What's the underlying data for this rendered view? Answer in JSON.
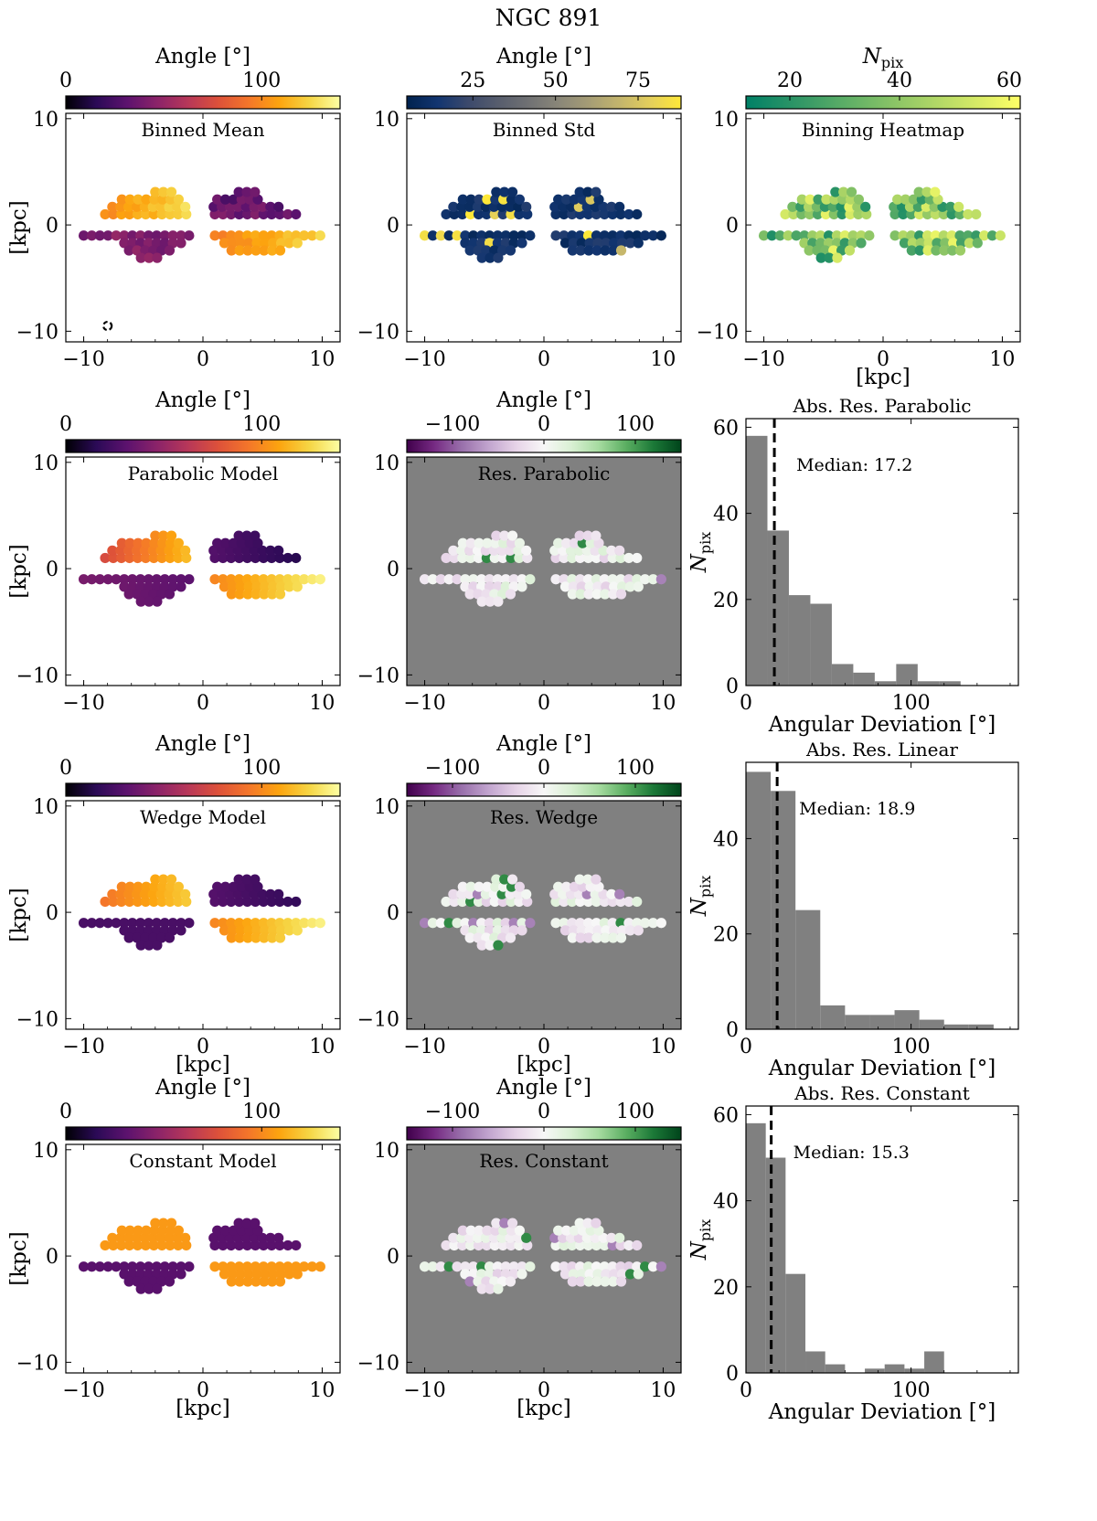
{
  "figure": {
    "title": "NGC 891",
    "maps": {
      "binned_mean": {
        "panel_title": "Binned Mean",
        "colorbar_label": "Angle [°]",
        "colorbar_ticks": [
          "0",
          "100"
        ],
        "colormap": "inferno"
      },
      "binned_std": {
        "panel_title": "Binned Std",
        "colorbar_label": "Angle [°]",
        "colorbar_ticks": [
          "25",
          "50",
          "75"
        ],
        "colormap": "cividis"
      },
      "binning_heatmap": {
        "panel_title": "Binning Heatmap",
        "colorbar_label": "N",
        "colorbar_label_sub": "pix",
        "colorbar_ticks": [
          "20",
          "40",
          "60"
        ],
        "colormap": "summer"
      },
      "parabolic_model": {
        "panel_title": "Parabolic Model",
        "colorbar_label": "Angle [°]",
        "colorbar_ticks": [
          "0",
          "100"
        ],
        "colormap": "inferno"
      },
      "res_parabolic": {
        "panel_title": "Res. Parabolic",
        "colorbar_label": "Angle [°]",
        "colorbar_ticks": [
          "−100",
          "0",
          "100"
        ],
        "colormap": "PRGn"
      },
      "wedge_model": {
        "panel_title": "Wedge Model",
        "colorbar_label": "Angle [°]",
        "colorbar_ticks": [
          "0",
          "100"
        ],
        "colormap": "inferno"
      },
      "res_wedge": {
        "panel_title": "Res. Wedge",
        "colorbar_label": "Angle [°]",
        "colorbar_ticks": [
          "−100",
          "0",
          "100"
        ],
        "colormap": "PRGn"
      },
      "constant_model": {
        "panel_title": "Constant Model",
        "colorbar_label": "Angle [°]",
        "colorbar_ticks": [
          "0",
          "100"
        ],
        "colormap": "inferno"
      },
      "res_constant": {
        "panel_title": "Res. Constant",
        "colorbar_label": "Angle [°]",
        "colorbar_ticks": [
          "−100",
          "0",
          "100"
        ],
        "colormap": "PRGn"
      }
    },
    "map_axes": {
      "x_ticks": [
        "−10",
        "0",
        "10"
      ],
      "y_ticks": [
        "10",
        "0",
        "−10"
      ],
      "xlabel": "[kpc]",
      "ylabel": "[kpc]"
    },
    "hist_axes": {
      "xlabel": "Angular Deviation [°]",
      "ylabel": "N",
      "ylabel_sub": "pix",
      "x_ticks": [
        "0",
        "100"
      ]
    },
    "hists": {
      "parabolic": {
        "title": "Abs. Res. Parabolic",
        "median_label": "Median: 17.2",
        "y_ticks": [
          "0",
          "20",
          "40",
          "60"
        ]
      },
      "linear": {
        "title": "Abs. Res. Linear",
        "median_label": "Median: 18.9",
        "y_ticks": [
          "0",
          "20",
          "40"
        ]
      },
      "constant": {
        "title": "Abs. Res. Constant",
        "median_label": "Median: 15.3",
        "y_ticks": [
          "0",
          "20",
          "40",
          "60"
        ]
      }
    }
  },
  "chart_data": [
    {
      "id": "binned_mean",
      "type": "scatter",
      "title": "Binned Mean",
      "xlabel": "",
      "ylabel": "[kpc]",
      "xlim": [
        -11.5,
        11.5
      ],
      "ylim": [
        -11,
        10.5
      ],
      "colorbar_range": [
        0,
        140
      ],
      "note": "binned pixel map, angle colour scale"
    },
    {
      "id": "binned_std",
      "type": "scatter",
      "title": "Binned Std",
      "xlim": [
        -11.5,
        11.5
      ],
      "ylim": [
        -11,
        10.5
      ],
      "colorbar_range": [
        5,
        88
      ]
    },
    {
      "id": "binning_heatmap",
      "type": "scatter",
      "title": "Binning Heatmap",
      "xlabel": "[kpc]",
      "xlim": [
        -11.5,
        11.5
      ],
      "ylim": [
        -11,
        10.5
      ],
      "colorbar_range": [
        12,
        62
      ]
    },
    {
      "id": "parabolic_model",
      "type": "scatter",
      "title": "Parabolic Model",
      "ylabel": "[kpc]",
      "colorbar_range": [
        0,
        140
      ]
    },
    {
      "id": "res_parabolic",
      "type": "scatter",
      "title": "Res. Parabolic",
      "colorbar_range": [
        -150,
        150
      ]
    },
    {
      "id": "wedge_model",
      "type": "scatter",
      "title": "Wedge Model",
      "xlabel": "[kpc]",
      "ylabel": "[kpc]",
      "colorbar_range": [
        0,
        140
      ]
    },
    {
      "id": "res_wedge",
      "type": "scatter",
      "title": "Res. Wedge",
      "xlabel": "[kpc]",
      "colorbar_range": [
        -150,
        150
      ]
    },
    {
      "id": "constant_model",
      "type": "scatter",
      "title": "Constant Model",
      "xlabel": "[kpc]",
      "ylabel": "[kpc]",
      "colorbar_range": [
        0,
        140
      ]
    },
    {
      "id": "res_constant",
      "type": "scatter",
      "title": "Res. Constant",
      "xlabel": "[kpc]",
      "colorbar_range": [
        -150,
        150
      ]
    },
    {
      "id": "hist_parabolic",
      "type": "bar",
      "title": "Abs. Res. Parabolic",
      "xlabel": "Angular Deviation [°]",
      "ylabel": "Npix",
      "bin_edges": [
        0,
        13,
        26,
        39,
        52,
        65,
        78,
        91,
        104,
        117,
        130
      ],
      "values": [
        58,
        36,
        21,
        19,
        5,
        3,
        1,
        5,
        1,
        1
      ],
      "median": 17.2,
      "xlim": [
        0,
        165
      ],
      "ylim": [
        0,
        62
      ]
    },
    {
      "id": "hist_linear",
      "type": "bar",
      "title": "Abs. Res. Linear",
      "xlabel": "Angular Deviation [°]",
      "ylabel": "Npix",
      "bin_edges": [
        0,
        15,
        30,
        45,
        60,
        75,
        90,
        105,
        120,
        135,
        150
      ],
      "values": [
        54,
        50,
        25,
        5,
        3,
        3,
        4,
        2,
        1,
        1
      ],
      "median": 18.9,
      "xlim": [
        0,
        165
      ],
      "ylim": [
        0,
        56
      ]
    },
    {
      "id": "hist_constant",
      "type": "bar",
      "title": "Abs. Res. Constant",
      "xlabel": "Angular Deviation [°]",
      "ylabel": "Npix",
      "bin_edges": [
        0,
        12,
        24,
        36,
        48,
        60,
        72,
        84,
        96,
        108,
        120
      ],
      "values": [
        58,
        50,
        23,
        5,
        2,
        0,
        1,
        2,
        1,
        5
      ],
      "median": 15.3,
      "xlim": [
        0,
        165
      ],
      "ylim": [
        0,
        62
      ]
    }
  ]
}
